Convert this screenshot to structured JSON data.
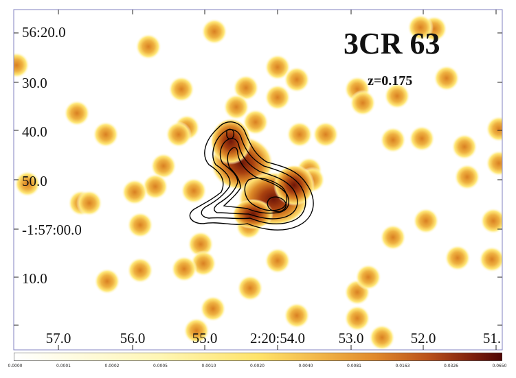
{
  "image": {
    "title": "3CR 63",
    "redshift": "z=0.175",
    "y_axis_labels": [
      "56:20.0",
      "30.0",
      "40.0",
      "50.0",
      "-1:57:00.0",
      "10.0"
    ],
    "x_axis_labels": [
      "57.0",
      "56.0",
      "55.0",
      "2:20:54.0",
      "53.0",
      "52.0",
      "51."
    ],
    "colorbar_labels": [
      "0.0000",
      "0.0001",
      "0.0002",
      "0.0005",
      "0.0010",
      "0.0020",
      "0.0040",
      "0.0081",
      "0.0163",
      "0.0326",
      "0.0650"
    ],
    "colors": {
      "background": "#ffffff",
      "blob_inner": "#e08a20",
      "blob_outer": "#fff27a",
      "core": "#7a1a0a",
      "contour": "#000000",
      "frame": "#8080c0"
    },
    "colormap": [
      "#ffffff",
      "#fff6b0",
      "#ffe86a",
      "#f6c24a",
      "#e9962c",
      "#c8661c",
      "#9a3410",
      "#5a0a06"
    ]
  }
}
